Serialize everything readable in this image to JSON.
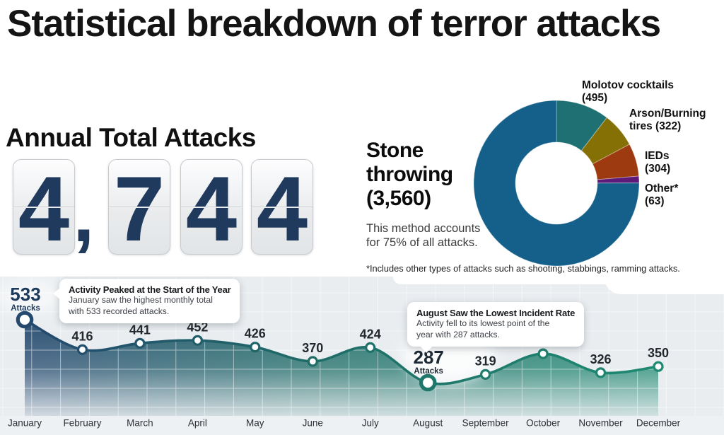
{
  "header": {
    "title": "Statistical breakdown of terror attacks"
  },
  "annual_total": {
    "heading": "Annual Total Attacks",
    "value": "4,744",
    "digits": [
      "4",
      "7",
      "4",
      "4"
    ],
    "separator": ",",
    "digit_color": "#203a5e"
  },
  "donut_section": {
    "subtext": "This method accounts for 75% of all attacks.",
    "footnote": "*Includes other types of attacks such as shooting, stabbings, ramming attacks."
  },
  "chart_data": [
    {
      "type": "pie",
      "shape": "donut",
      "total": 4744,
      "direction": "clockwise",
      "order_from_top": [
        "Molotov cocktails",
        "Arson/Burning tires",
        "IEDs",
        "Other*",
        "Stone throwing"
      ],
      "slices": [
        {
          "label": "Stone throwing",
          "value": 3560,
          "display": "Stone throwing (3,560)",
          "color": "#15608a",
          "share": "75%"
        },
        {
          "label": "Molotov cocktails",
          "value": 495,
          "display": "Molotov cocktails (495)",
          "color": "#1f7072"
        },
        {
          "label": "Arson/Burning tires",
          "value": 322,
          "display": "Arson/Burning tires (322)",
          "color": "#857005"
        },
        {
          "label": "IEDs",
          "value": 304,
          "display": "IEDs (304)",
          "color": "#9e3a10"
        },
        {
          "label": "Other*",
          "value": 63,
          "display": "Other* (63)",
          "color": "#5e1a78"
        }
      ]
    },
    {
      "type": "area",
      "categories": [
        "January",
        "February",
        "March",
        "April",
        "May",
        "June",
        "July",
        "August",
        "September",
        "October",
        "November",
        "December"
      ],
      "values": [
        533,
        416,
        441,
        452,
        426,
        370,
        424,
        287,
        319,
        400,
        326,
        350
      ],
      "line_gradient": [
        "#24486e",
        "#1f6c67",
        "#1f8a72"
      ],
      "grid": true,
      "highlights": [
        {
          "month": "January",
          "value": 533,
          "sublabel": "Attacks",
          "color": "#1d3a5c"
        },
        {
          "month": "August",
          "value": 287,
          "sublabel": "Attacks",
          "color": "#1d2935"
        }
      ],
      "callouts": [
        {
          "title": "Activity Peaked at the Start of the Year",
          "body_lines": [
            "January saw the highest monthly total",
            "with 533 recorded attacks."
          ]
        },
        {
          "title": "August Saw the Lowest Incident Rate",
          "body_lines": [
            "Activity fell to its lowest point of the",
            "year with 287 attacks."
          ]
        }
      ]
    }
  ]
}
